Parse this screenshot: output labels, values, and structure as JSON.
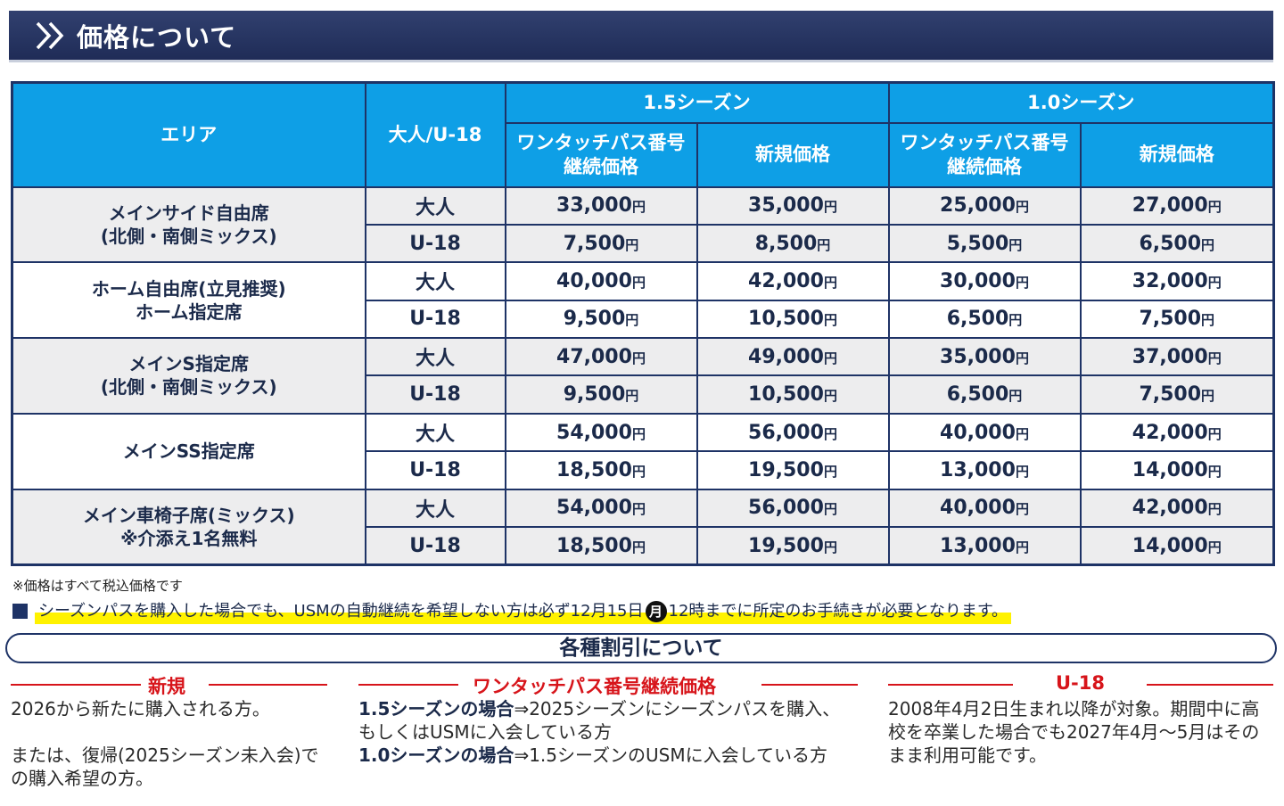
{
  "header": {
    "title": "価格について",
    "icon": "double-chevron-right-icon"
  },
  "table": {
    "col_area": "エリア",
    "col_age": "大人/U-18",
    "season_15": "1.5シーズン",
    "season_10": "1.0シーズン",
    "col_continue_line1": "ワンタッチパス番号",
    "col_continue_line2": "継続価格",
    "col_new": "新規価格",
    "yen": "円",
    "groups": [
      {
        "area_line1": "メインサイド自由席",
        "area_line2": "(北側・南側ミックス)",
        "rows": [
          {
            "age": "大人",
            "values": [
              "33,000",
              "35,000",
              "25,000",
              "27,000"
            ]
          },
          {
            "age": "U-18",
            "values": [
              "7,500",
              "8,500",
              "5,500",
              "6,500"
            ]
          }
        ]
      },
      {
        "area_line1": "ホーム自由席(立見推奨)",
        "area_line2": "ホーム指定席",
        "rows": [
          {
            "age": "大人",
            "values": [
              "40,000",
              "42,000",
              "30,000",
              "32,000"
            ]
          },
          {
            "age": "U-18",
            "values": [
              "9,500",
              "10,500",
              "6,500",
              "7,500"
            ]
          }
        ]
      },
      {
        "area_line1": "メインS指定席",
        "area_line2": "(北側・南側ミックス)",
        "rows": [
          {
            "age": "大人",
            "values": [
              "47,000",
              "49,000",
              "35,000",
              "37,000"
            ]
          },
          {
            "age": "U-18",
            "values": [
              "9,500",
              "10,500",
              "6,500",
              "7,500"
            ]
          }
        ]
      },
      {
        "area_line1": "メインSS指定席",
        "area_line2": "",
        "rows": [
          {
            "age": "大人",
            "values": [
              "54,000",
              "56,000",
              "40,000",
              "42,000"
            ]
          },
          {
            "age": "U-18",
            "values": [
              "18,500",
              "19,500",
              "13,000",
              "14,000"
            ]
          }
        ]
      },
      {
        "area_line1": "メイン車椅子席(ミックス)",
        "area_line2": "※介添え1名無料",
        "rows": [
          {
            "age": "大人",
            "values": [
              "54,000",
              "56,000",
              "40,000",
              "42,000"
            ]
          },
          {
            "age": "U-18",
            "values": [
              "18,500",
              "19,500",
              "13,000",
              "14,000"
            ]
          }
        ]
      }
    ]
  },
  "tax_note": "※価格はすべて税込価格です",
  "notice": {
    "before": "シーズンパスを購入した場合でも、USMの自動継続を希望しない方は必ず12月15日",
    "weekday": "月",
    "after": "12時までに所定のお手続きが必要となります。"
  },
  "discount_title": "各種割引について",
  "columns": {
    "new": {
      "title": "新規",
      "line1": "2026から新たに購入される方。",
      "line2": "または、復帰(2025シーズン未入会)での購入希望の方。"
    },
    "continue": {
      "title": "ワンタッチパス番号継続価格",
      "p1_bold": "1.5シーズンの場合",
      "p1_text": "⇒2025シーズンにシーズンパスを購入、もしくはUSMに入会している方",
      "p2_bold": "1.0シーズンの場合",
      "p2_text": "⇒1.5シーズンのUSMに入会している方"
    },
    "u18": {
      "title": "U-18",
      "text": "2008年4月2日生まれ以降が対象。期間中に高校を卒業した場合でも2027年4月～5月はそのまま利用可能です。"
    }
  },
  "colors": {
    "navy": "#1e3366",
    "table_head": "#0e9fe6",
    "accent_red": "#d7141a",
    "highlight": "#fff200"
  }
}
